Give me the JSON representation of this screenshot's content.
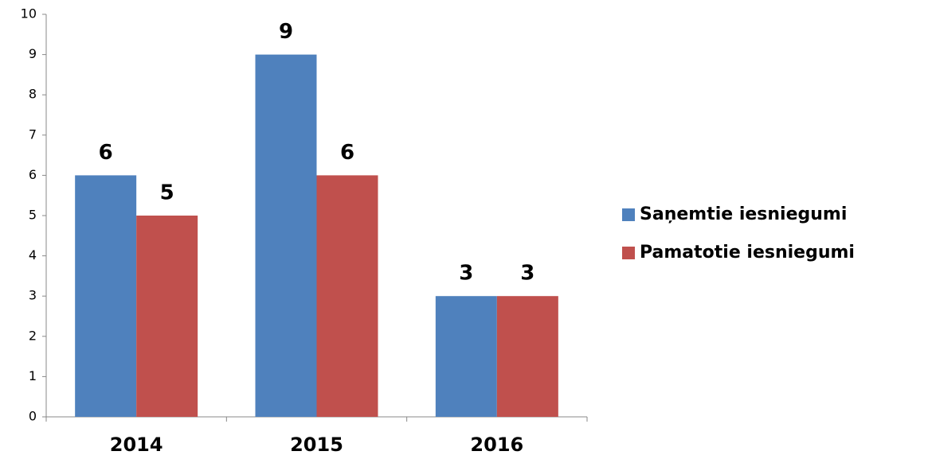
{
  "chart_data": {
    "type": "bar",
    "categories": [
      "2014",
      "2015",
      "2016"
    ],
    "series": [
      {
        "name": "Saņemtie iesniegumi",
        "color": "#4f81bd",
        "values": [
          6,
          9,
          3
        ]
      },
      {
        "name": "Pamatotie iesniegumi",
        "color": "#c0504d",
        "values": [
          5,
          6,
          3
        ]
      }
    ],
    "ylim": [
      0,
      10
    ],
    "yticks": [
      0,
      1,
      2,
      3,
      4,
      5,
      6,
      7,
      8,
      9,
      10
    ],
    "legend": "right"
  }
}
